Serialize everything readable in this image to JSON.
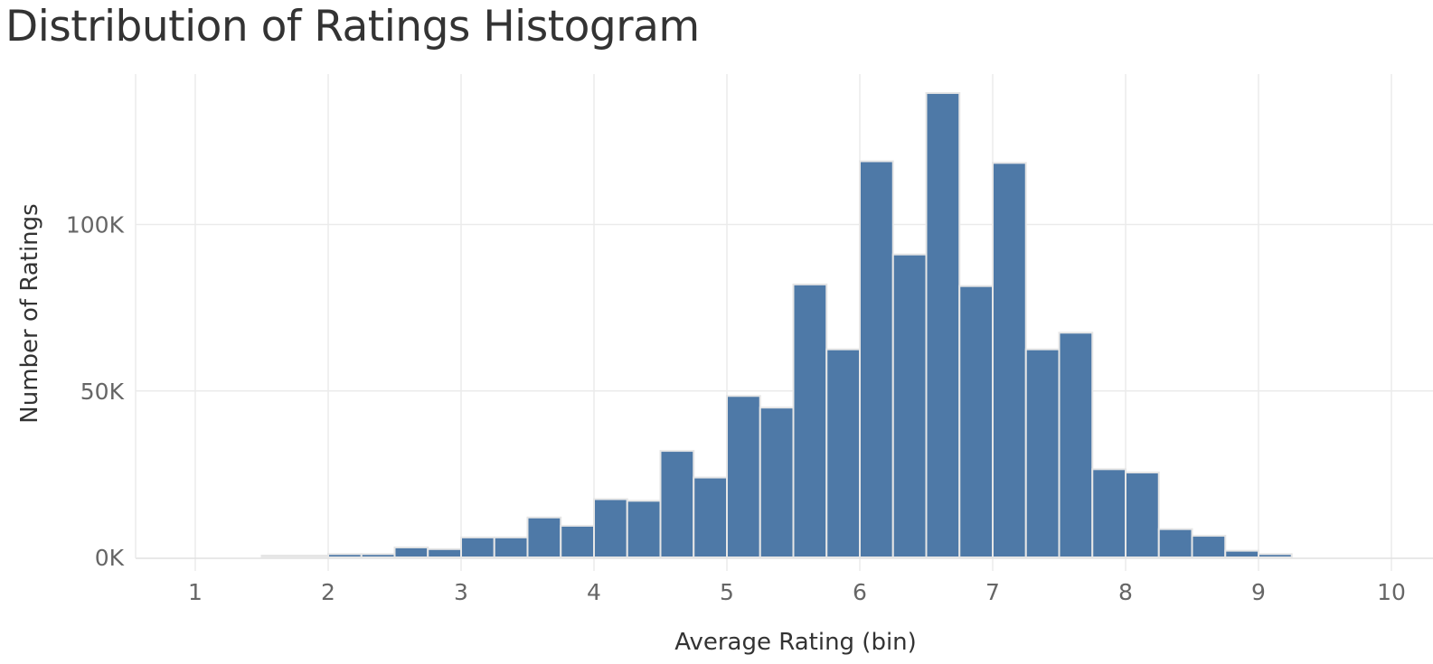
{
  "chart_data": {
    "type": "bar",
    "title": "Distribution of Ratings Histogram",
    "xlabel": "Average Rating (bin)",
    "ylabel": "Number of Ratings",
    "bin_width": 0.25,
    "xlim": [
      0.5,
      10.0
    ],
    "ylim": [
      -4000,
      142000
    ],
    "x_ticks": [
      {
        "value": 1,
        "label": "1"
      },
      {
        "value": 2,
        "label": "2"
      },
      {
        "value": 3,
        "label": "3"
      },
      {
        "value": 4,
        "label": "4"
      },
      {
        "value": 5,
        "label": "5"
      },
      {
        "value": 6,
        "label": "6"
      },
      {
        "value": 7,
        "label": "7"
      },
      {
        "value": 8,
        "label": "8"
      },
      {
        "value": 9,
        "label": "9"
      },
      {
        "value": 10,
        "label": "10"
      }
    ],
    "y_ticks": [
      {
        "value": 0,
        "label": "0K"
      },
      {
        "value": 50000,
        "label": "50K"
      },
      {
        "value": 100000,
        "label": "100K"
      }
    ],
    "grid": true,
    "bar_color": "#4e79a7",
    "bar_edge_color": "#e6e6e6",
    "series": [
      {
        "x": [
          1.5,
          1.75,
          2.0,
          2.25,
          2.5,
          2.75,
          3.0,
          3.25,
          3.5,
          3.75,
          4.0,
          4.25,
          4.5,
          4.75,
          5.0,
          5.25,
          5.5,
          5.75,
          6.0,
          6.25,
          6.5,
          6.75,
          7.0,
          7.25,
          7.5,
          7.75,
          8.0,
          8.25,
          8.5,
          8.75,
          9.0
        ],
        "values": [
          300,
          300,
          1000,
          1000,
          3000,
          2500,
          6000,
          6000,
          12000,
          9500,
          17500,
          17000,
          32000,
          24000,
          48500,
          45000,
          82000,
          62500,
          119000,
          91000,
          139500,
          81500,
          118500,
          62500,
          67500,
          26500,
          25500,
          8500,
          6500,
          2000,
          1000
        ]
      }
    ]
  }
}
